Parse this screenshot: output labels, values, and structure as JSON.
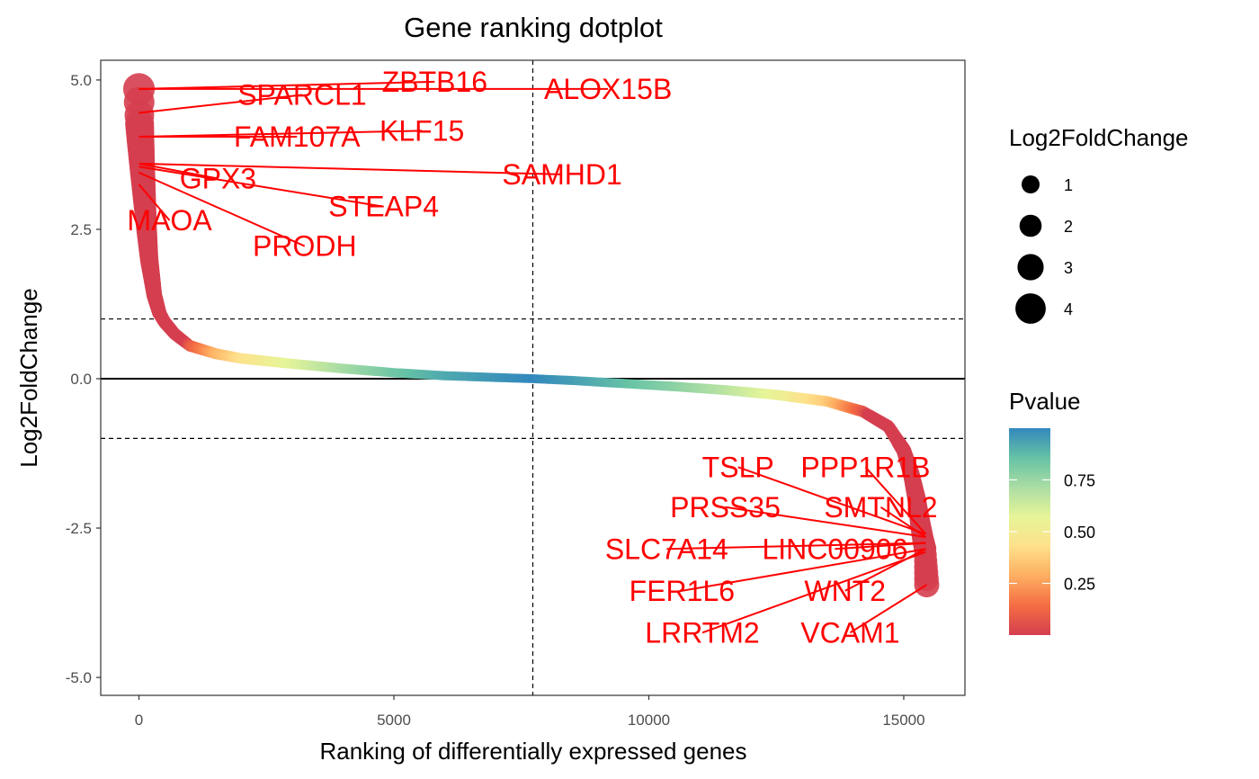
{
  "chart_data": {
    "type": "scatter",
    "title": "Gene ranking dotplot",
    "xlabel": "Ranking of differentially expressed genes",
    "ylabel": "Log2FoldChange",
    "xlim": [
      -750,
      16200
    ],
    "ylim": [
      -5.3,
      5.33
    ],
    "x_ticks": [
      0,
      5000,
      10000,
      15000
    ],
    "x_tick_labels": [
      "0",
      "5000",
      "10000",
      "15000"
    ],
    "y_ticks": [
      5.0,
      2.5,
      0.0,
      -2.5,
      -5.0
    ],
    "y_tick_labels": [
      "5.0",
      "2.5",
      "0.0",
      "-2.5",
      "-5.0"
    ],
    "grid": false,
    "total_genes": 15450,
    "reference_lines": {
      "horizontal_dashed": [
        1,
        -1
      ],
      "horizontal_solid": [
        0
      ],
      "vertical_dashed": [
        7725
      ]
    },
    "curve": {
      "x": [
        0,
        10,
        30,
        60,
        100,
        150,
        200,
        300,
        400,
        500,
        700,
        1000,
        1500,
        2000,
        3000,
        4000,
        5000,
        6000,
        7000,
        7725,
        8500,
        9500,
        10500,
        11500,
        12500,
        13500,
        14200,
        14700,
        15000,
        15150,
        15250,
        15320,
        15380,
        15420,
        15450
      ],
      "y": [
        4.85,
        4.3,
        4.0,
        3.6,
        3.1,
        2.5,
        2.0,
        1.4,
        1.1,
        0.95,
        0.75,
        0.55,
        0.42,
        0.34,
        0.25,
        0.17,
        0.1,
        0.05,
        0.02,
        0.0,
        -0.03,
        -0.08,
        -0.13,
        -0.19,
        -0.27,
        -0.38,
        -0.55,
        -0.8,
        -1.2,
        -1.6,
        -2.0,
        -2.4,
        -2.7,
        -2.85,
        -3.45
      ]
    },
    "size_legend": {
      "title": "Log2FoldChange",
      "entries": [
        {
          "label": "1",
          "value": 1
        },
        {
          "label": "2",
          "value": 2
        },
        {
          "label": "3",
          "value": 3
        },
        {
          "label": "4",
          "value": 4
        }
      ]
    },
    "color_legend": {
      "title": "Pvalue",
      "range": [
        0.0,
        1.0
      ],
      "tick_values": [
        0.25,
        0.5,
        0.75
      ],
      "tick_labels": [
        "0.25",
        "0.50",
        "0.75"
      ],
      "colors": [
        "#D53E4F",
        "#F46D43",
        "#FDAE61",
        "#FEE08B",
        "#E6F598",
        "#ABDDA4",
        "#66C2A5",
        "#3288BD"
      ]
    },
    "labels": [
      {
        "gene": "ZBTB16",
        "point": [
          0,
          4.85
        ],
        "label_pos": [
          5800,
          4.97
        ]
      },
      {
        "gene": "ALOX15B",
        "point": [
          0,
          4.85
        ],
        "label_pos": [
          9200,
          4.85
        ]
      },
      {
        "gene": "SPARCL1",
        "point": [
          0,
          4.45
        ],
        "label_pos": [
          3200,
          4.75
        ]
      },
      {
        "gene": "FAM107A",
        "point": [
          0,
          4.05
        ],
        "label_pos": [
          3100,
          4.05
        ]
      },
      {
        "gene": "KLF15",
        "point": [
          0,
          4.05
        ],
        "label_pos": [
          5550,
          4.15
        ]
      },
      {
        "gene": "GPX3",
        "point": [
          0,
          3.6
        ],
        "label_pos": [
          1550,
          3.35
        ]
      },
      {
        "gene": "SAMHD1",
        "point": [
          0,
          3.6
        ],
        "label_pos": [
          8300,
          3.42
        ]
      },
      {
        "gene": "STEAP4",
        "point": [
          0,
          3.55
        ],
        "label_pos": [
          4800,
          2.88
        ]
      },
      {
        "gene": "MAOA",
        "point": [
          0,
          3.25
        ],
        "label_pos": [
          600,
          2.65
        ]
      },
      {
        "gene": "PRODH",
        "point": [
          0,
          3.45
        ],
        "label_pos": [
          3250,
          2.22
        ]
      },
      {
        "gene": "TSLP",
        "point": [
          15430,
          -2.6
        ],
        "label_pos": [
          11750,
          -1.48
        ]
      },
      {
        "gene": "PPP1R1B",
        "point": [
          15430,
          -2.6
        ],
        "label_pos": [
          14250,
          -1.48
        ]
      },
      {
        "gene": "PRSS35",
        "point": [
          15430,
          -2.65
        ],
        "label_pos": [
          11500,
          -2.15
        ]
      },
      {
        "gene": "SMTNL2",
        "point": [
          15430,
          -2.65
        ],
        "label_pos": [
          14550,
          -2.15
        ]
      },
      {
        "gene": "SLC7A14",
        "point": [
          15430,
          -2.75
        ],
        "label_pos": [
          10350,
          -2.85
        ]
      },
      {
        "gene": "LINC00906",
        "point": [
          15430,
          -2.75
        ],
        "label_pos": [
          13650,
          -2.85
        ]
      },
      {
        "gene": "FER1L6",
        "point": [
          15430,
          -2.85
        ],
        "label_pos": [
          10650,
          -3.55
        ]
      },
      {
        "gene": "WNT2",
        "point": [
          15430,
          -2.85
        ],
        "label_pos": [
          13850,
          -3.55
        ]
      },
      {
        "gene": "LRRTM2",
        "point": [
          15430,
          -2.9
        ],
        "label_pos": [
          11050,
          -4.25
        ]
      },
      {
        "gene": "VCAM1",
        "point": [
          15450,
          -3.45
        ],
        "label_pos": [
          13950,
          -4.25
        ]
      }
    ]
  }
}
